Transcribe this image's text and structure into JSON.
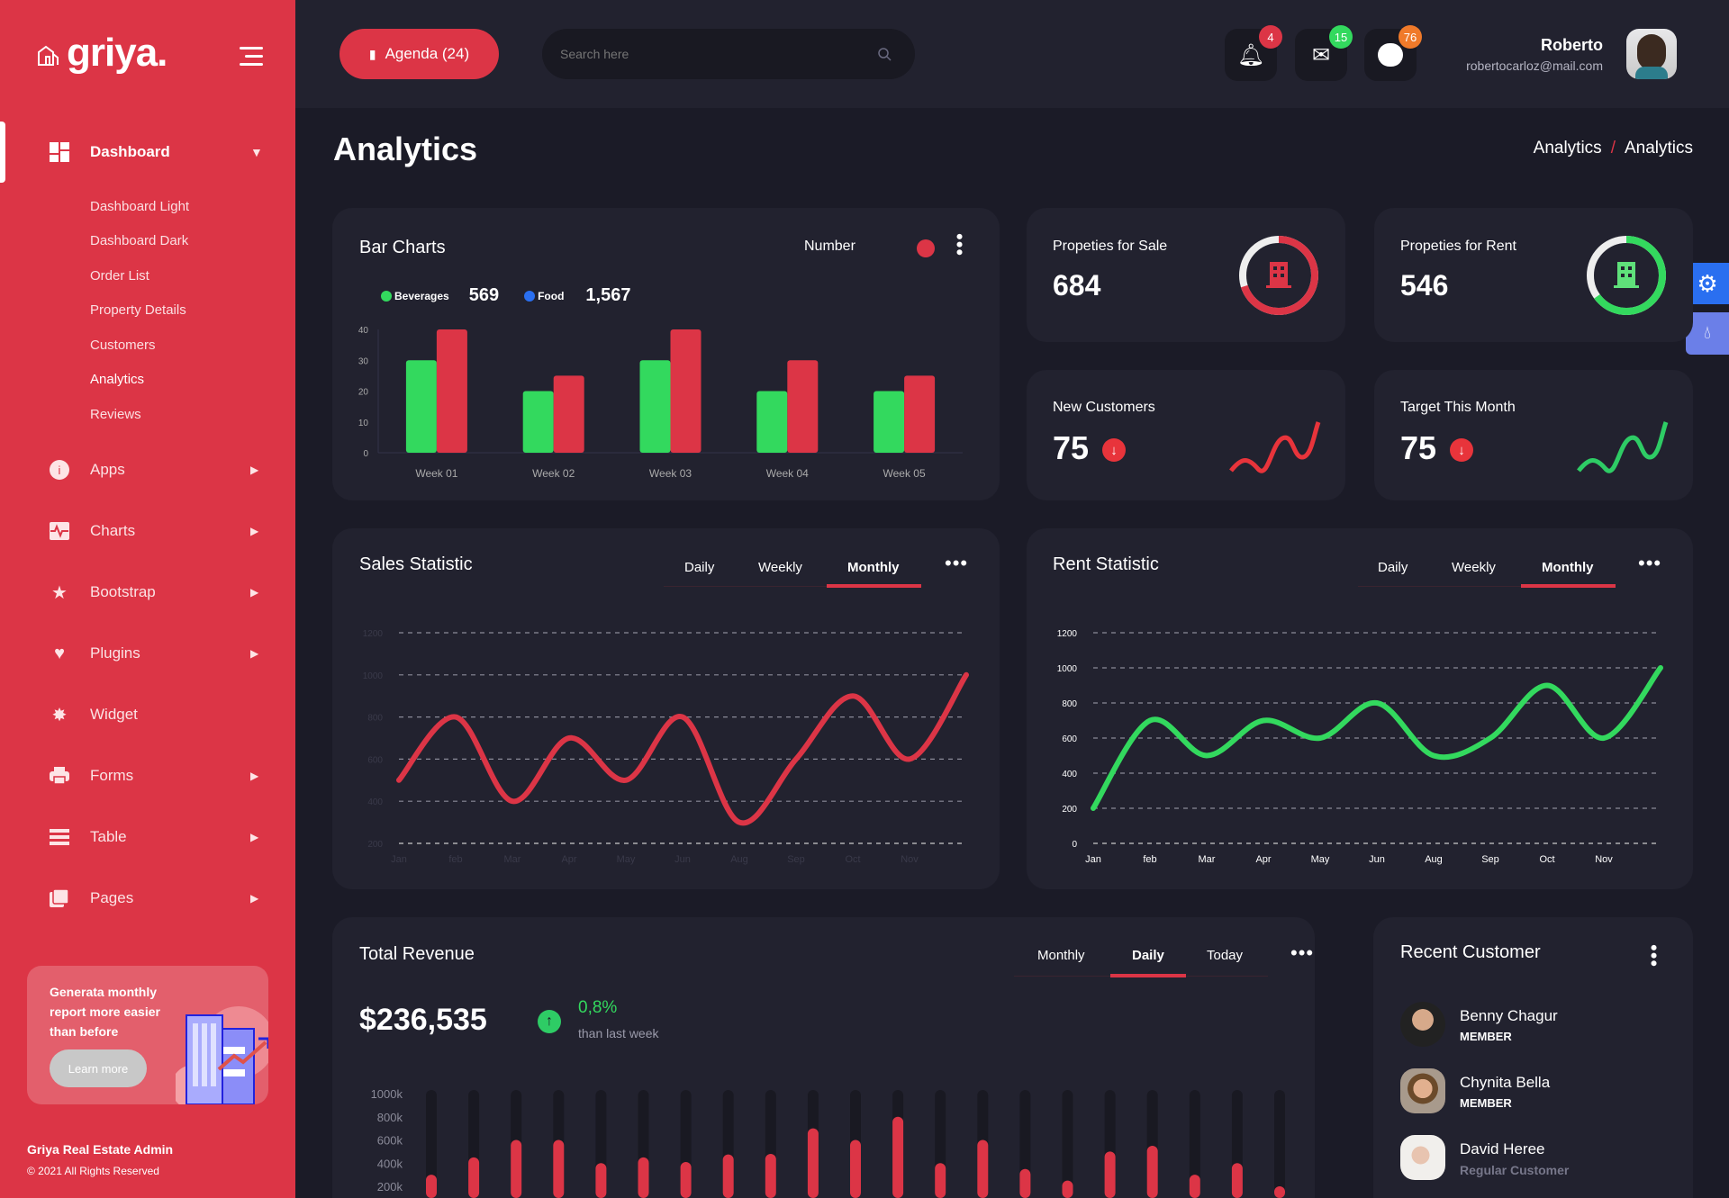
{
  "colors": {
    "accent": "#dc3546",
    "green": "#33d95e",
    "blue": "#2a6ff0",
    "card": "#22222f",
    "bg": "#1b1b27"
  },
  "sidebar": {
    "logo": "griya.",
    "menu": [
      {
        "label": "Dashboard",
        "icon": "dashboard-grid-icon",
        "expanded": true,
        "sub": [
          "Dashboard Light",
          "Dashboard Dark",
          "Order List",
          "Property Details",
          "Customers",
          "Analytics",
          "Reviews"
        ],
        "active_sub": "Analytics"
      },
      {
        "label": "Apps",
        "icon": "info-icon"
      },
      {
        "label": "Charts",
        "icon": "chart-pulse-icon"
      },
      {
        "label": "Bootstrap",
        "icon": "star-icon"
      },
      {
        "label": "Plugins",
        "icon": "heart-icon"
      },
      {
        "label": "Widget",
        "icon": "widget-badge-icon"
      },
      {
        "label": "Forms",
        "icon": "printer-icon"
      },
      {
        "label": "Table",
        "icon": "table-icon"
      },
      {
        "label": "Pages",
        "icon": "pages-icon"
      }
    ],
    "promo": {
      "text": "Generata monthly report more easier than before",
      "button": "Learn more"
    },
    "footer": {
      "title": "Griya Real Estate Admin",
      "copyright": "© 2021 All Rights Reserved"
    }
  },
  "header": {
    "agenda": "Agenda (24)",
    "search_placeholder": "Search here",
    "notifications": {
      "bell": "4",
      "mail": "15",
      "chat": "76"
    },
    "badge_colors": {
      "bell": "#dc3546",
      "mail": "#33d95e",
      "chat": "#f07a2a"
    },
    "user": {
      "name": "Roberto",
      "email": "robertocarloz@mail.com"
    }
  },
  "page": {
    "title": "Analytics",
    "breadcrumb": [
      "Analytics",
      "/",
      "Analytics"
    ]
  },
  "stats": {
    "sale": {
      "label": "Propeties for Sale",
      "value": "684",
      "ring_percent": 70
    },
    "rent": {
      "label": "Propeties for Rent",
      "value": "546",
      "ring_percent": 65
    },
    "new_customers": {
      "label": "New Customers",
      "value": "75",
      "trend": "down"
    },
    "target": {
      "label": "Target This Month",
      "value": "75",
      "trend": "down"
    }
  },
  "tabs": {
    "sales": [
      "Daily",
      "Weekly",
      "Monthly"
    ],
    "rent": [
      "Daily",
      "Weekly",
      "Monthly"
    ],
    "revenue": [
      "Monthly",
      "Daily",
      "Today"
    ]
  },
  "revenue": {
    "title": "Total Revenue",
    "amount": "$236,535",
    "change": "0,8%",
    "change_note": "than last week"
  },
  "recent": {
    "title": "Recent Customer",
    "customers": [
      {
        "name": "Benny Chagur",
        "role": "MEMBER"
      },
      {
        "name": "Chynita Bella",
        "role": "MEMBER"
      },
      {
        "name": "David Heree",
        "role": "Regular Customer"
      }
    ]
  },
  "chart_data": [
    {
      "type": "bar",
      "title": "Bar Charts",
      "selector": "Number",
      "legend": [
        {
          "name": "Beverages",
          "total": "569",
          "color": "#33d95e"
        },
        {
          "name": "Food",
          "total": "1,567",
          "color": "#2a6ff0"
        }
      ],
      "categories": [
        "Week 01",
        "Week 02",
        "Week 03",
        "Week 04",
        "Week 05"
      ],
      "series": [
        {
          "color": "#33d95e",
          "values": [
            30,
            20,
            30,
            20,
            20
          ]
        },
        {
          "color": "#dc3546",
          "values": [
            40,
            25,
            40,
            30,
            25
          ]
        }
      ],
      "yticks": [
        "0",
        "10",
        "20",
        "30",
        "40"
      ],
      "ylim": [
        0,
        40
      ]
    },
    {
      "type": "line",
      "title": "Sales Statistic",
      "color": "#dc3546",
      "categories": [
        "Jan",
        "feb",
        "Mar",
        "Apr",
        "May",
        "Jun",
        "Aug",
        "Sep",
        "Oct",
        "Nov",
        ""
      ],
      "values": [
        500,
        800,
        400,
        700,
        500,
        800,
        300,
        600,
        900,
        600,
        1000
      ],
      "yticks": [
        "200",
        "400",
        "600",
        "800",
        "1000",
        "1200"
      ],
      "ylim": [
        200,
        1200
      ],
      "grid": true
    },
    {
      "type": "line",
      "title": "Rent Statistic",
      "color": "#33d95e",
      "categories": [
        "Jan",
        "feb",
        "Mar",
        "Apr",
        "May",
        "Jun",
        "Aug",
        "Sep",
        "Oct",
        "Nov",
        ""
      ],
      "values": [
        200,
        700,
        500,
        700,
        600,
        800,
        500,
        600,
        900,
        600,
        1000
      ],
      "yticks": [
        "0",
        "200",
        "400",
        "600",
        "800",
        "1000",
        "1200"
      ],
      "ylim": [
        0,
        1200
      ],
      "grid": true
    },
    {
      "type": "bar",
      "title": "Total Revenue",
      "yticks": [
        "200k",
        "400k",
        "600k",
        "800k",
        "1000k"
      ],
      "ylim": [
        0,
        1000
      ],
      "values": [
        300,
        450,
        600,
        600,
        400,
        450,
        410,
        475,
        480,
        700,
        600,
        800,
        400,
        600,
        350,
        250,
        500,
        550,
        300,
        400,
        200
      ]
    }
  ]
}
